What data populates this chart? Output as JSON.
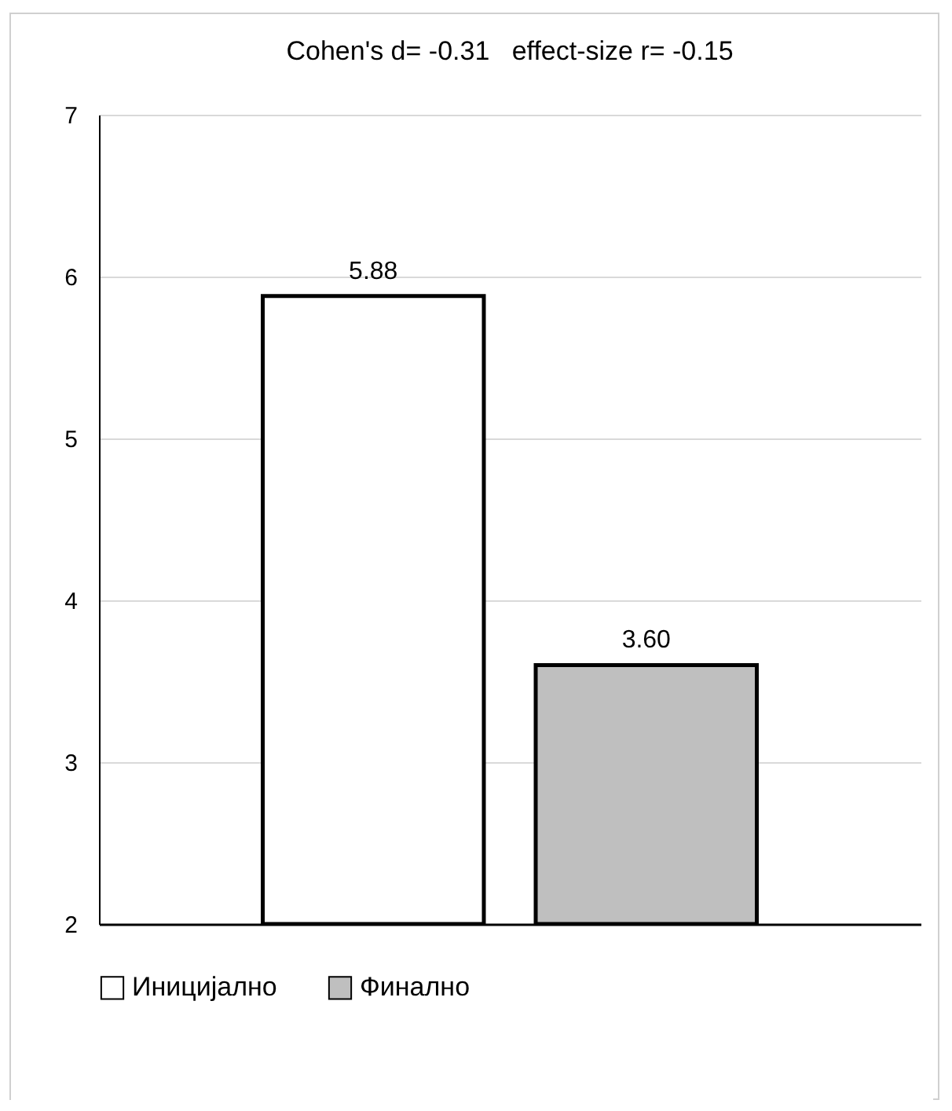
{
  "chart_data": {
    "type": "bar",
    "title": "Cohen's d= -0.31   effect-size r= -0.15",
    "categories": [
      null,
      null
    ],
    "series": [
      {
        "name": "Иницијално",
        "color": "#ffffff",
        "values": [
          5.88,
          null
        ],
        "value_labels": [
          "5.88",
          null
        ]
      },
      {
        "name": "Финално",
        "color": "#bfbfbf",
        "values": [
          null,
          3.6
        ],
        "value_labels": [
          null,
          "3.60"
        ]
      }
    ],
    "ylim": [
      2,
      7
    ],
    "yticks": [
      2,
      3,
      4,
      5,
      6,
      7
    ],
    "grid": "y",
    "legend": "bottom"
  }
}
